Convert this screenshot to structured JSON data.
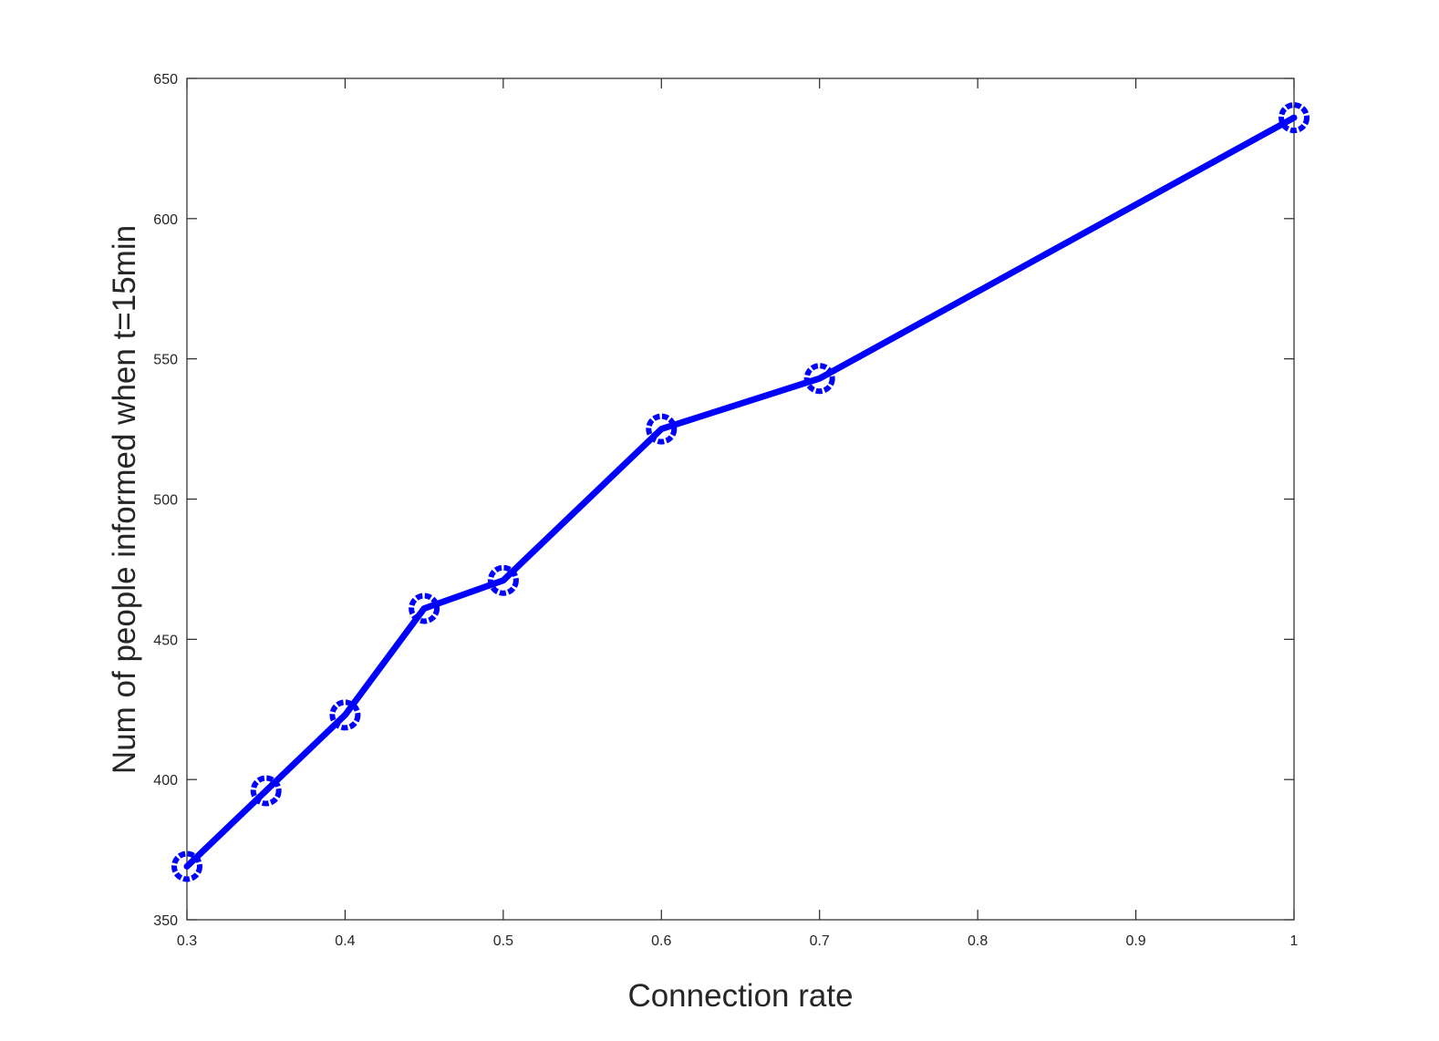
{
  "chart_data": {
    "type": "line",
    "title": "",
    "xlabel": "Connection rate",
    "ylabel": "Num of people informed when t=15min",
    "xlim": [
      0.3,
      1
    ],
    "ylim": [
      350,
      650
    ],
    "xticks": [
      0.3,
      0.4,
      0.5,
      0.6,
      0.7,
      0.8,
      0.9,
      1
    ],
    "xtick_labels": [
      "0.3",
      "0.4",
      "0.5",
      "0.6",
      "0.7",
      "0.8",
      "0.9",
      "1"
    ],
    "yticks": [
      350,
      400,
      450,
      500,
      550,
      600,
      650
    ],
    "ytick_labels": [
      "350",
      "400",
      "450",
      "500",
      "550",
      "600",
      "650"
    ],
    "grid": false,
    "series": [
      {
        "color": "#0000ff",
        "marker": "circle",
        "x": [
          0.3,
          0.35,
          0.4,
          0.45,
          0.5,
          0.6,
          0.7,
          1.0
        ],
        "y": [
          369,
          396,
          423,
          461,
          471,
          525,
          543,
          636
        ]
      }
    ]
  }
}
